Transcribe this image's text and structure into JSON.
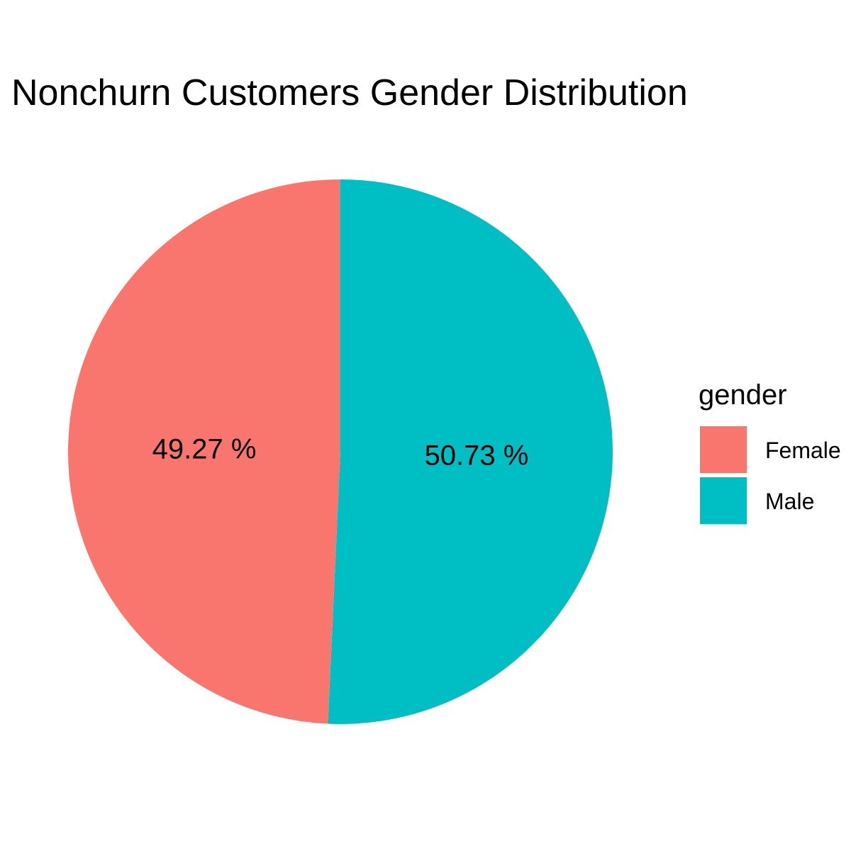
{
  "chart_data": {
    "type": "pie",
    "title": "Nonchurn Customers Gender Distribution",
    "categories": [
      "Female",
      "Male"
    ],
    "values": [
      49.27,
      50.73
    ],
    "labels": [
      "49.27 %",
      "50.73 %"
    ],
    "colors": [
      "#F8766D",
      "#00BFC4"
    ],
    "legend": {
      "title": "gender",
      "position": "right"
    }
  }
}
